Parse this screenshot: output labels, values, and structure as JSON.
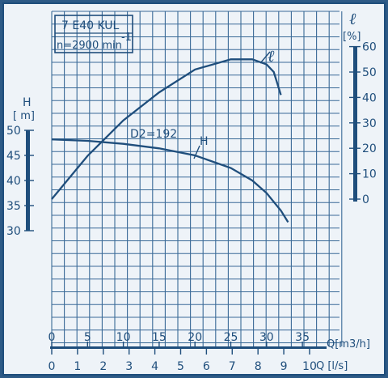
{
  "colors": {
    "background": "#2d5a86",
    "paper": "#eef3f8",
    "ink": "#1f4e7c",
    "grid": "#3a6a97"
  },
  "header": {
    "model": "7 E40 KUL",
    "speed_label": "n=2900 min",
    "speed_exp": "-1"
  },
  "y_left": {
    "symbol": "H",
    "unit": "[ m]",
    "ticks": [
      "50",
      "45",
      "40",
      "35",
      "30"
    ]
  },
  "y_right": {
    "symbol": "ℓ",
    "unit": "[%]",
    "ticks": [
      "60",
      "50",
      "40",
      "30",
      "20",
      "10",
      "0"
    ]
  },
  "x_top": {
    "label": "Q[m3/h]",
    "ticks": [
      "0",
      "5",
      "10",
      "15",
      "20",
      "25",
      "30",
      "35"
    ]
  },
  "x_bottom": {
    "label": "Q [l/s]",
    "ticks": [
      "0",
      "1",
      "2",
      "3",
      "4",
      "5",
      "6",
      "7",
      "8",
      "9",
      "10"
    ]
  },
  "curve_labels": {
    "efficiency": "ℓ",
    "head": "H",
    "impeller": "D2=192"
  },
  "chart_data": {
    "type": "line",
    "x_unit": "m3/h",
    "xlim": [
      0,
      35
    ],
    "y_left_lim": [
      30,
      50
    ],
    "y_right_lim": [
      0,
      60
    ],
    "grid": true,
    "series": [
      {
        "name": "H",
        "axis": "left",
        "x": [
          0,
          5,
          10,
          15,
          20,
          25,
          28,
          30,
          32,
          33
        ],
        "values": [
          48.2,
          47.9,
          47.3,
          46.4,
          45.0,
          42.5,
          40.0,
          37.5,
          34.0,
          31.7
        ]
      },
      {
        "name": "ℓ",
        "axis": "right",
        "x": [
          0,
          5,
          10,
          15,
          20,
          25,
          28,
          30,
          31,
          32
        ],
        "values": [
          0,
          17,
          31,
          42,
          51,
          55,
          55,
          53,
          50,
          41
        ]
      }
    ]
  }
}
